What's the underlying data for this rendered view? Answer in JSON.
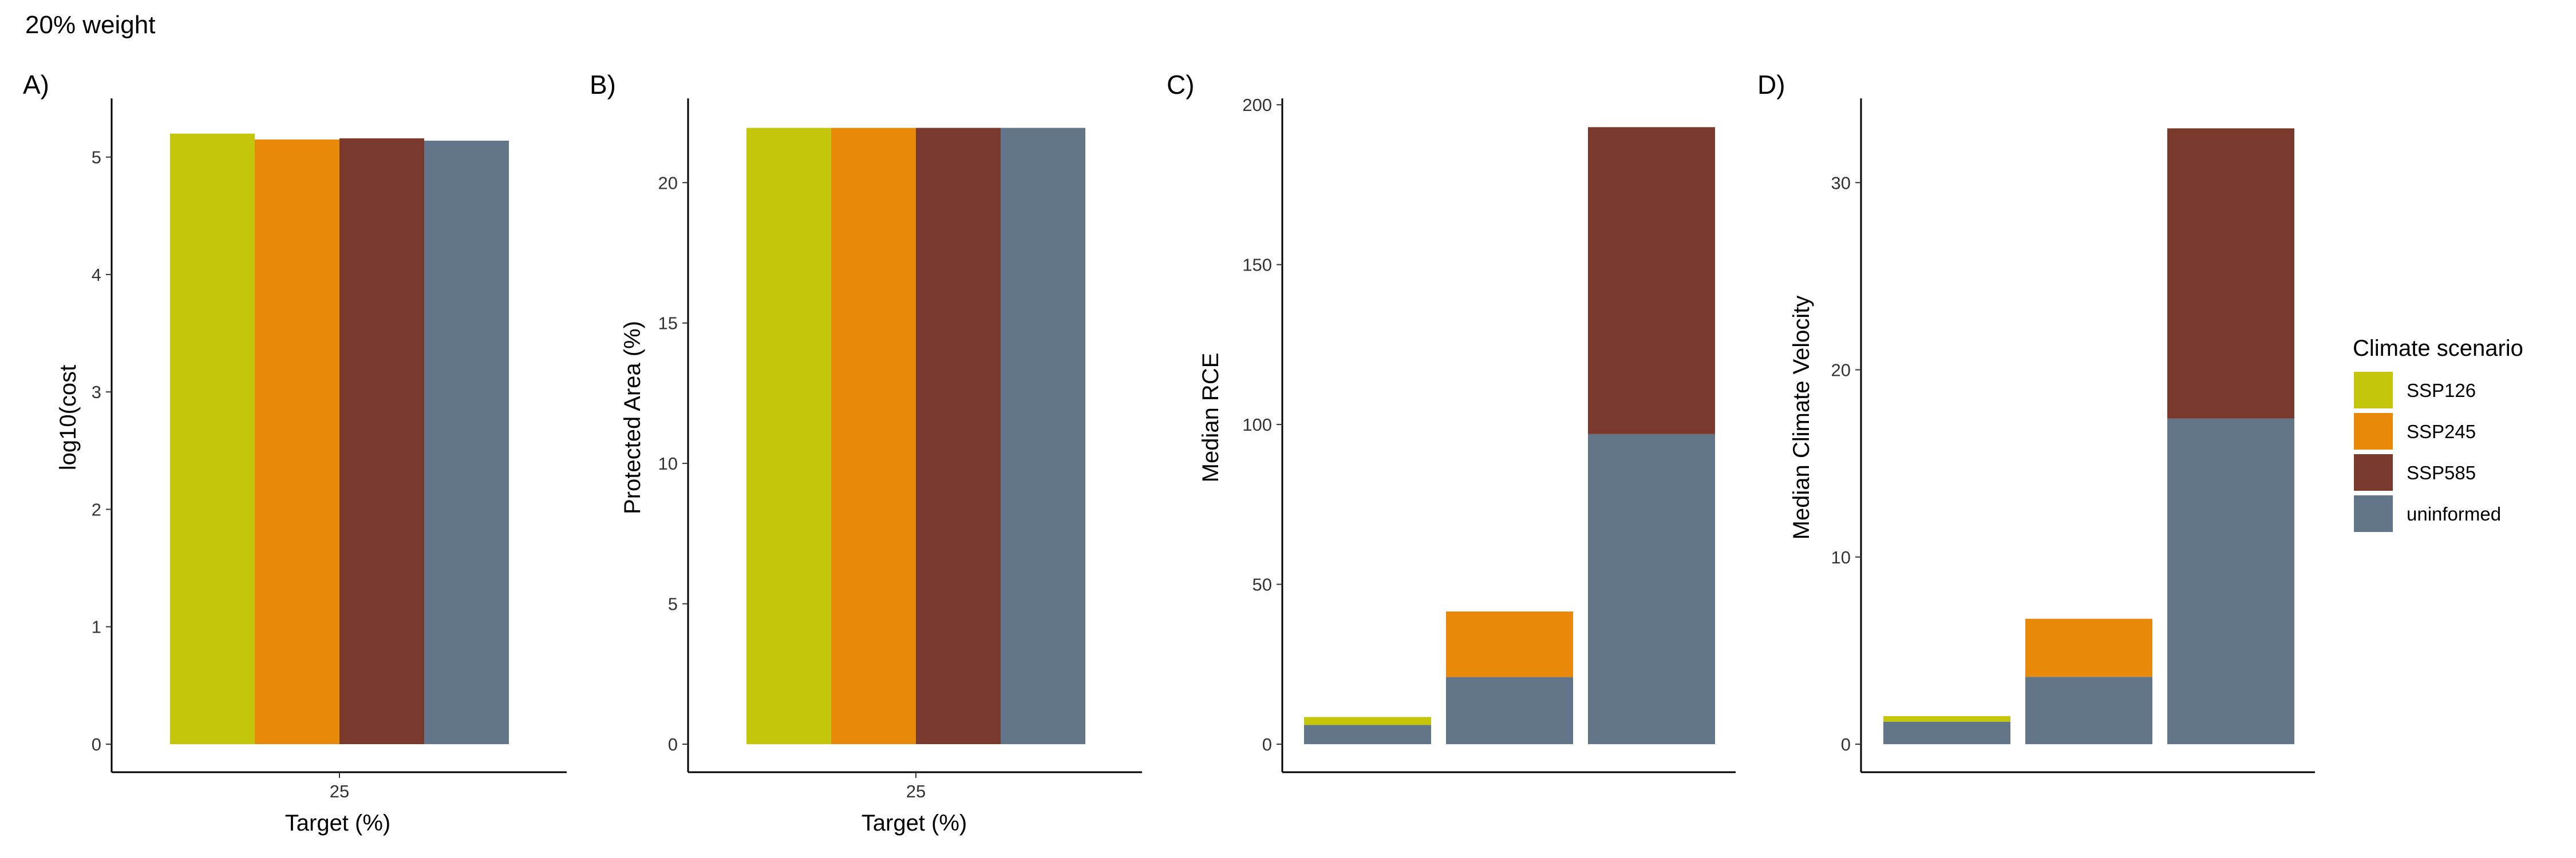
{
  "page_title": "20% weight",
  "colors": {
    "SSP126": "#c4c60b",
    "SSP245": "#e8890a",
    "SSP585": "#7a392d",
    "uninformed": "#637588"
  },
  "legend": {
    "title": "Climate scenario",
    "items": [
      "SSP126",
      "SSP245",
      "SSP585",
      "uninformed"
    ]
  },
  "chart_data": [
    {
      "type": "bar",
      "panel_tag": "A)",
      "xlabel": "Target (%)",
      "ylabel": "log10(cost",
      "categories": [
        "25"
      ],
      "ylim": [
        0,
        5.5
      ],
      "yticks": [
        0,
        1,
        2,
        3,
        4,
        5
      ],
      "series": [
        {
          "name": "SSP126",
          "values": [
            5.2
          ]
        },
        {
          "name": "SSP245",
          "values": [
            5.15
          ]
        },
        {
          "name": "SSP585",
          "values": [
            5.16
          ]
        },
        {
          "name": "uninformed",
          "values": [
            5.14
          ]
        }
      ]
    },
    {
      "type": "bar",
      "panel_tag": "B)",
      "xlabel": "Target (%)",
      "ylabel": "Protected Area (%)",
      "categories": [
        "25"
      ],
      "ylim": [
        0,
        23
      ],
      "yticks": [
        0,
        5,
        10,
        15,
        20
      ],
      "series": [
        {
          "name": "SSP126",
          "values": [
            21.95
          ]
        },
        {
          "name": "SSP245",
          "values": [
            21.95
          ]
        },
        {
          "name": "SSP585",
          "values": [
            21.95
          ]
        },
        {
          "name": "uninformed",
          "values": [
            21.95
          ]
        }
      ]
    },
    {
      "type": "bar",
      "stacked": true,
      "panel_tag": "C)",
      "xlabel": "",
      "ylabel": "Median RCE",
      "ylim": [
        0,
        202
      ],
      "yticks": [
        0,
        50,
        100,
        150,
        200
      ],
      "stacks": [
        {
          "segments": [
            {
              "name": "uninformed",
              "value": 6.0
            },
            {
              "name": "SSP126",
              "value": 2.5
            }
          ]
        },
        {
          "segments": [
            {
              "name": "uninformed",
              "value": 21.0
            },
            {
              "name": "SSP245",
              "value": 20.5
            }
          ]
        },
        {
          "segments": [
            {
              "name": "uninformed",
              "value": 97.0
            },
            {
              "name": "SSP585",
              "value": 96.0
            }
          ]
        }
      ]
    },
    {
      "type": "bar",
      "stacked": true,
      "panel_tag": "D)",
      "xlabel": "",
      "ylabel": "Median Climate Velocity",
      "ylim": [
        0,
        34.5
      ],
      "yticks": [
        0,
        10,
        20,
        30
      ],
      "stacks": [
        {
          "segments": [
            {
              "name": "uninformed",
              "value": 1.2
            },
            {
              "name": "SSP126",
              "value": 0.3
            }
          ]
        },
        {
          "segments": [
            {
              "name": "uninformed",
              "value": 3.6
            },
            {
              "name": "SSP245",
              "value": 3.1
            }
          ]
        },
        {
          "segments": [
            {
              "name": "uninformed",
              "value": 17.4
            },
            {
              "name": "SSP585",
              "value": 15.5
            }
          ]
        }
      ]
    }
  ]
}
